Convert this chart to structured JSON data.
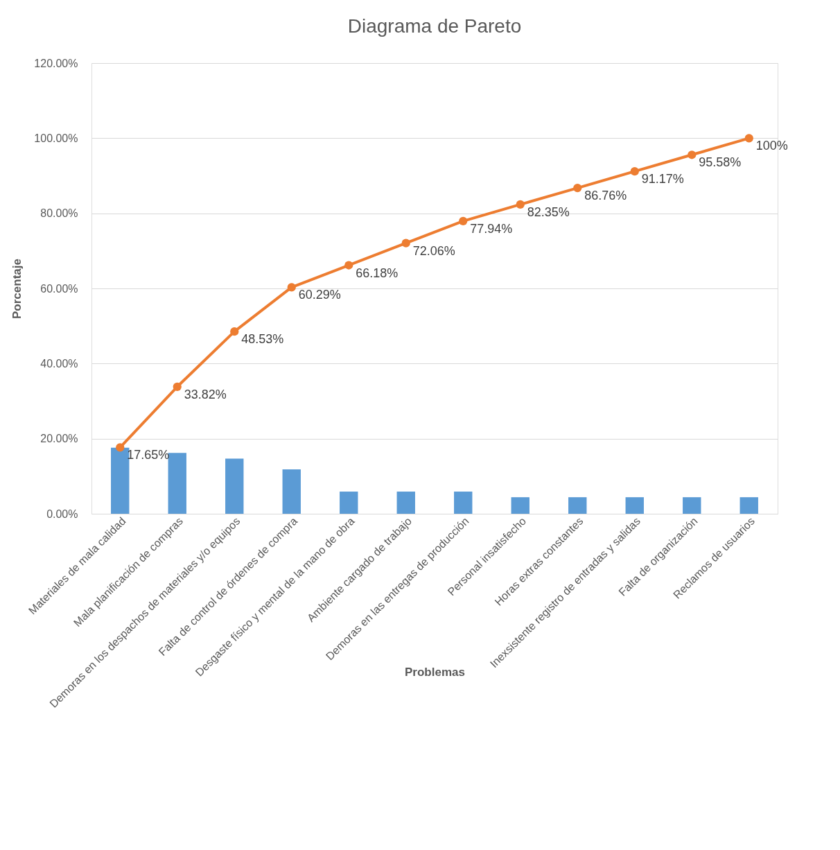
{
  "chart_data": {
    "type": "bar",
    "title": "Diagrama de Pareto",
    "xlabel": "Problemas",
    "ylabel": "Porcentaje",
    "categories": [
      "Materiales de mala calidad",
      "Mala planificación de compras",
      "Demoras en los despachos de materiales y/o equipos",
      "Falta de control de órdenes de compra",
      "Desgaste físico y mental de la mano de obra",
      "Ambiente cargado de trabajo",
      "Demoras en las entregas de producción",
      "Personal insatisfecho",
      "Horas extras constantes",
      "Inexsistente registro de entradas y salidas",
      "Falta de organización",
      "Reclamos de usuarios"
    ],
    "series": [
      {
        "color": "#5b9bd5",
        "values": [
          17.6,
          16.2,
          14.7,
          11.8,
          5.9,
          5.9,
          5.9,
          4.4,
          4.4,
          4.4,
          4.4,
          4.4
        ]
      },
      {
        "type": "line",
        "color": "#ed7d31",
        "marker": "circle",
        "values": [
          17.65,
          33.82,
          48.53,
          60.29,
          66.18,
          72.06,
          77.94,
          82.35,
          86.76,
          91.17,
          95.58,
          100
        ],
        "value_labels": [
          "17.65%",
          "33.82%",
          "48.53%",
          "60.29%",
          "66.18%",
          "72.06%",
          "77.94%",
          "82.35%",
          "86.76%",
          "91.17%",
          "95.58%",
          "100%"
        ]
      }
    ],
    "ylim": [
      0,
      120
    ],
    "yticks": [
      {
        "value": 0,
        "label": "0.00%"
      },
      {
        "value": 20,
        "label": "20.00%"
      },
      {
        "value": 40,
        "label": "40.00%"
      },
      {
        "value": 60,
        "label": "60.00%"
      },
      {
        "value": 80,
        "label": "80.00%"
      },
      {
        "value": 100,
        "label": "100.00%"
      },
      {
        "value": 120,
        "label": "120.00%"
      }
    ],
    "grid": "y"
  }
}
